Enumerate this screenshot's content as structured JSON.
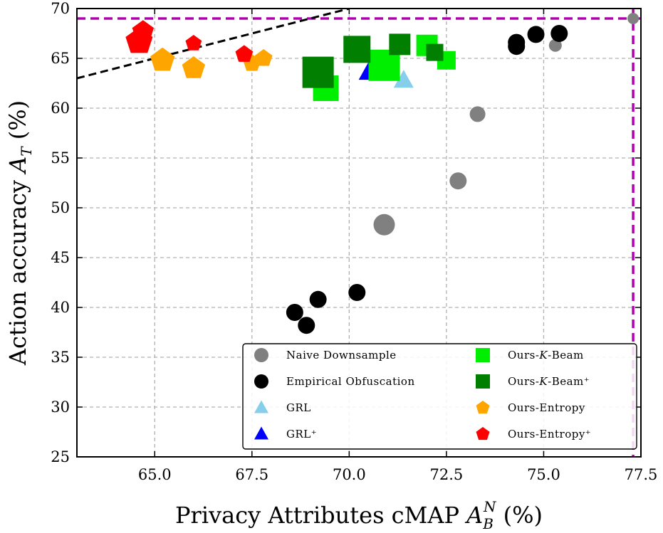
{
  "chart_data": {
    "type": "scatter",
    "xlabel": "Privacy Attributes cMAP A_B^N (%)",
    "ylabel": "Action accuracy A_T (%)",
    "xlim": [
      63.0,
      77.5
    ],
    "ylim": [
      25,
      70
    ],
    "xticks": [
      "65.0",
      "67.5",
      "70.0",
      "72.5",
      "75.0",
      "77.5"
    ],
    "yticks": [
      "25",
      "30",
      "35",
      "40",
      "45",
      "50",
      "55",
      "60",
      "65",
      "70"
    ],
    "grid": true,
    "legend_position": "bottom-right",
    "reference_lines": {
      "horizontal_y": 69.0,
      "vertical_x": 77.3,
      "diagonal": {
        "from": [
          63.0,
          63.0
        ],
        "to": [
          70.0,
          70.0
        ]
      }
    },
    "series": [
      {
        "name": "Naive Downsample",
        "marker": "circle",
        "color": "#808080",
        "points": [
          [
            70.9,
            48.3
          ],
          [
            72.8,
            52.7
          ],
          [
            73.3,
            59.4
          ],
          [
            75.3,
            66.3
          ],
          [
            77.3,
            69.0
          ]
        ],
        "sizes": [
          15,
          12,
          11,
          9,
          8
        ]
      },
      {
        "name": "Empirical Obfuscation",
        "marker": "circle",
        "color": "#000000",
        "points": [
          [
            68.6,
            39.5
          ],
          [
            68.9,
            38.2
          ],
          [
            69.2,
            40.8
          ],
          [
            70.2,
            41.5
          ],
          [
            74.3,
            66.2
          ],
          [
            74.3,
            66.6
          ],
          [
            74.8,
            67.4
          ],
          [
            75.4,
            67.5
          ]
        ],
        "sizes": [
          12,
          12,
          12,
          12,
          12,
          12,
          12,
          12
        ]
      },
      {
        "name": "GRL",
        "marker": "triangle",
        "color": "#87ceeb",
        "points": [
          [
            71.4,
            62.8
          ]
        ],
        "sizes": [
          14
        ]
      },
      {
        "name": "GRL⁺",
        "marker": "triangle",
        "color": "#0000ff",
        "points": [
          [
            70.5,
            63.6
          ]
        ],
        "sizes": [
          14
        ]
      },
      {
        "name": "Ours-K-Beam",
        "marker": "square",
        "color": "#00ee00",
        "points": [
          [
            69.4,
            62.0
          ],
          [
            70.9,
            64.3
          ],
          [
            72.0,
            66.3
          ],
          [
            72.5,
            64.8
          ]
        ],
        "sizes": [
          18,
          22,
          15,
          13
        ]
      },
      {
        "name": "Ours-K-Beam⁺",
        "marker": "square",
        "color": "#007f00",
        "points": [
          [
            69.2,
            63.6
          ],
          [
            70.2,
            65.9
          ],
          [
            71.3,
            66.4
          ],
          [
            72.2,
            65.6
          ]
        ],
        "sizes": [
          22,
          19,
          15,
          12
        ]
      },
      {
        "name": "Ours-Entropy",
        "marker": "pentagon",
        "color": "#ffa500",
        "points": [
          [
            65.2,
            64.8
          ],
          [
            66.0,
            64.0
          ],
          [
            67.5,
            64.5
          ],
          [
            67.8,
            65.0
          ]
        ],
        "sizes": [
          18,
          17,
          13,
          13
        ]
      },
      {
        "name": "Ours-Entropy⁺",
        "marker": "pentagon",
        "color": "#ff0000",
        "points": [
          [
            64.6,
            66.7
          ],
          [
            64.7,
            67.7
          ],
          [
            66.0,
            66.5
          ],
          [
            67.3,
            65.4
          ]
        ],
        "sizes": [
          20,
          16,
          12,
          13
        ]
      }
    ]
  },
  "legend": {
    "entries": [
      {
        "label": "Naive Downsample",
        "marker": "circle",
        "color": "#808080"
      },
      {
        "label": "Empirical Obfuscation",
        "marker": "circle",
        "color": "#000000"
      },
      {
        "label": "GRL",
        "marker": "triangle",
        "color": "#87ceeb"
      },
      {
        "label": "GRL⁺",
        "marker": "triangle",
        "color": "#0000ff"
      },
      {
        "label": "Ours-K-Beam",
        "marker": "square",
        "color": "#00ee00"
      },
      {
        "label": "Ours-K-Beam⁺",
        "marker": "square",
        "color": "#007f00"
      },
      {
        "label": "Ours-Entropy",
        "marker": "pentagon",
        "color": "#ffa500"
      },
      {
        "label": "Ours-Entropy⁺",
        "marker": "pentagon",
        "color": "#ff0000"
      }
    ]
  },
  "colors": {
    "grid": "#b0b0b0",
    "reference": "#b000b0",
    "diagonal": "#000000"
  }
}
